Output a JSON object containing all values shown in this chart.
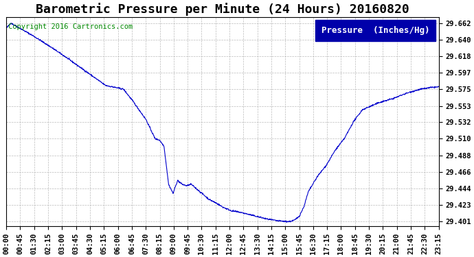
{
  "title": "Barometric Pressure per Minute (24 Hours) 20160820",
  "copyright": "Copyright 2016 Cartronics.com",
  "legend_label": "Pressure  (Inches/Hg)",
  "line_color": "#0000CC",
  "background_color": "#ffffff",
  "plot_bg_color": "#ffffff",
  "grid_color": "#aaaaaa",
  "legend_bg_color": "#0000AA",
  "legend_text_color": "#ffffff",
  "yticks": [
    29.401,
    29.423,
    29.444,
    29.466,
    29.488,
    29.51,
    29.532,
    29.553,
    29.575,
    29.597,
    29.618,
    29.64,
    29.662
  ],
  "xtick_labels": [
    "00:00",
    "00:45",
    "01:30",
    "02:15",
    "03:00",
    "03:45",
    "04:30",
    "05:15",
    "06:00",
    "06:45",
    "07:30",
    "08:15",
    "09:00",
    "09:45",
    "10:30",
    "11:15",
    "12:00",
    "12:45",
    "13:30",
    "14:15",
    "15:00",
    "15:45",
    "16:30",
    "17:15",
    "18:00",
    "18:45",
    "19:30",
    "20:15",
    "21:00",
    "21:45",
    "22:30",
    "23:15"
  ],
  "ylim": [
    29.395,
    29.67
  ],
  "title_fontsize": 13,
  "tick_fontsize": 7.5,
  "copyright_fontsize": 7.5,
  "legend_fontsize": 9,
  "keypoints_t": [
    0,
    15,
    90,
    150,
    195,
    270,
    330,
    390,
    420,
    465,
    495,
    510,
    525,
    540,
    555,
    570,
    585,
    600,
    615,
    630,
    645,
    660,
    675,
    700,
    720,
    750,
    780,
    810,
    840,
    870,
    900,
    930,
    945,
    960,
    975,
    990,
    1005,
    1035,
    1065,
    1095,
    1125,
    1155,
    1185,
    1215,
    1245,
    1290,
    1320,
    1350,
    1380,
    1410,
    1439
  ],
  "keypoints_v": [
    29.655,
    29.662,
    29.645,
    29.63,
    29.618,
    29.597,
    29.58,
    29.575,
    29.56,
    29.535,
    29.51,
    29.508,
    29.5,
    29.45,
    29.438,
    29.455,
    29.45,
    29.448,
    29.45,
    29.445,
    29.44,
    29.435,
    29.43,
    29.425,
    29.42,
    29.415,
    29.413,
    29.41,
    29.407,
    29.404,
    29.402,
    29.401,
    29.401,
    29.403,
    29.408,
    29.42,
    29.44,
    29.46,
    29.475,
    29.495,
    29.51,
    29.532,
    29.548,
    29.553,
    29.558,
    29.563,
    29.568,
    29.572,
    29.575,
    29.577,
    29.578
  ]
}
